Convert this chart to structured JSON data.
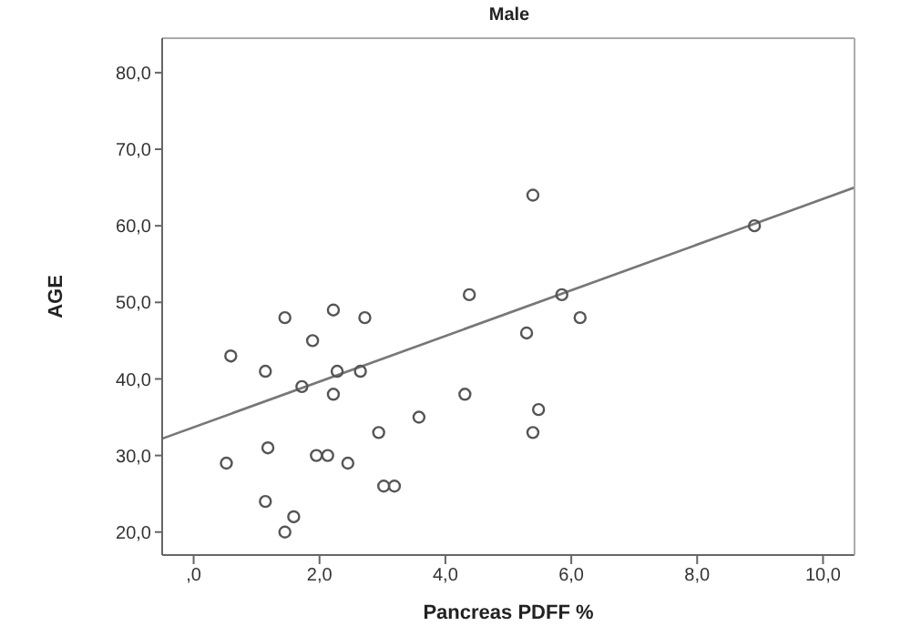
{
  "chart_data": {
    "type": "scatter",
    "title": "Male",
    "xlabel": "Pancreas PDFF %",
    "ylabel": "AGE",
    "xlim": [
      -0.5,
      10.5
    ],
    "ylim": [
      17,
      84.5
    ],
    "xticks": [
      {
        "value": 0,
        "label": ",0"
      },
      {
        "value": 2,
        "label": "2,0"
      },
      {
        "value": 4,
        "label": "4,0"
      },
      {
        "value": 6,
        "label": "6,0"
      },
      {
        "value": 8,
        "label": "8,0"
      },
      {
        "value": 10,
        "label": "10,0"
      }
    ],
    "yticks": [
      {
        "value": 20,
        "label": "20,0"
      },
      {
        "value": 30,
        "label": "30,0"
      },
      {
        "value": 40,
        "label": "40,0"
      },
      {
        "value": 50,
        "label": "50,0"
      },
      {
        "value": 60,
        "label": "60,0"
      },
      {
        "value": 70,
        "label": "70,0"
      },
      {
        "value": 80,
        "label": "80,0"
      }
    ],
    "marker": "circle",
    "series": [
      {
        "color": "#555555",
        "x": [
          0.52,
          0.59,
          1.14,
          1.18,
          1.14,
          1.45,
          1.45,
          1.59,
          1.72,
          1.89,
          1.95,
          2.13,
          2.22,
          2.22,
          2.28,
          2.45,
          2.65,
          2.72,
          2.94,
          3.02,
          3.19,
          3.58,
          4.31,
          4.38,
          5.39,
          5.29,
          5.85,
          6.14,
          5.48,
          5.39,
          8.91
        ],
        "values": [
          29,
          43,
          41,
          31,
          24,
          48,
          20,
          22,
          39,
          45,
          30,
          30,
          49,
          38,
          41,
          29,
          41,
          48,
          33,
          26,
          26,
          35,
          38,
          51,
          64,
          46,
          51,
          48,
          36,
          33,
          60
        ]
      },
      {
        "type": "line",
        "color": "#777777",
        "marker": "none",
        "x": [
          -0.5,
          10.5
        ],
        "values": [
          32.2,
          65.0
        ]
      }
    ]
  }
}
